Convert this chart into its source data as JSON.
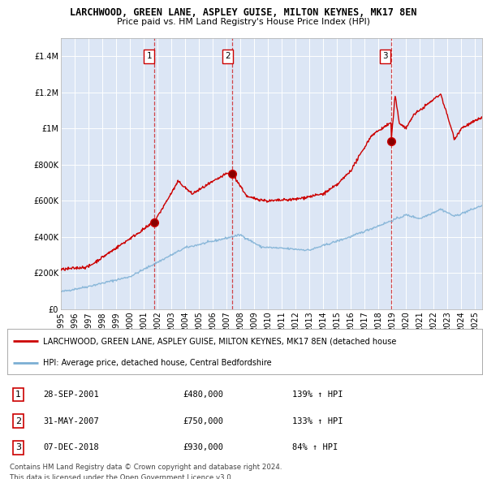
{
  "title": "LARCHWOOD, GREEN LANE, ASPLEY GUISE, MILTON KEYNES, MK17 8EN",
  "subtitle": "Price paid vs. HM Land Registry's House Price Index (HPI)",
  "legend_red": "LARCHWOOD, GREEN LANE, ASPLEY GUISE, MILTON KEYNES, MK17 8EN (detached house",
  "legend_blue": "HPI: Average price, detached house, Central Bedfordshire",
  "footnote1": "Contains HM Land Registry data © Crown copyright and database right 2024.",
  "footnote2": "This data is licensed under the Open Government Licence v3.0.",
  "sales": [
    {
      "num": 1,
      "date": "28-SEP-2001",
      "price": 480000,
      "pct": "139%",
      "year": 2001.75
    },
    {
      "num": 2,
      "date": "31-MAY-2007",
      "price": 750000,
      "pct": "133%",
      "year": 2007.42
    },
    {
      "num": 3,
      "date": "07-DEC-2018",
      "price": 930000,
      "pct": "84%",
      "year": 2018.92
    }
  ],
  "red_color": "#cc0000",
  "blue_color": "#7bafd4",
  "plot_bg": "#dce6f5",
  "ylim_max": 1500000,
  "xlim_start": 1995.0,
  "xlim_end": 2025.5,
  "yticks": [
    0,
    200000,
    400000,
    600000,
    800000,
    1000000,
    1200000,
    1400000
  ]
}
